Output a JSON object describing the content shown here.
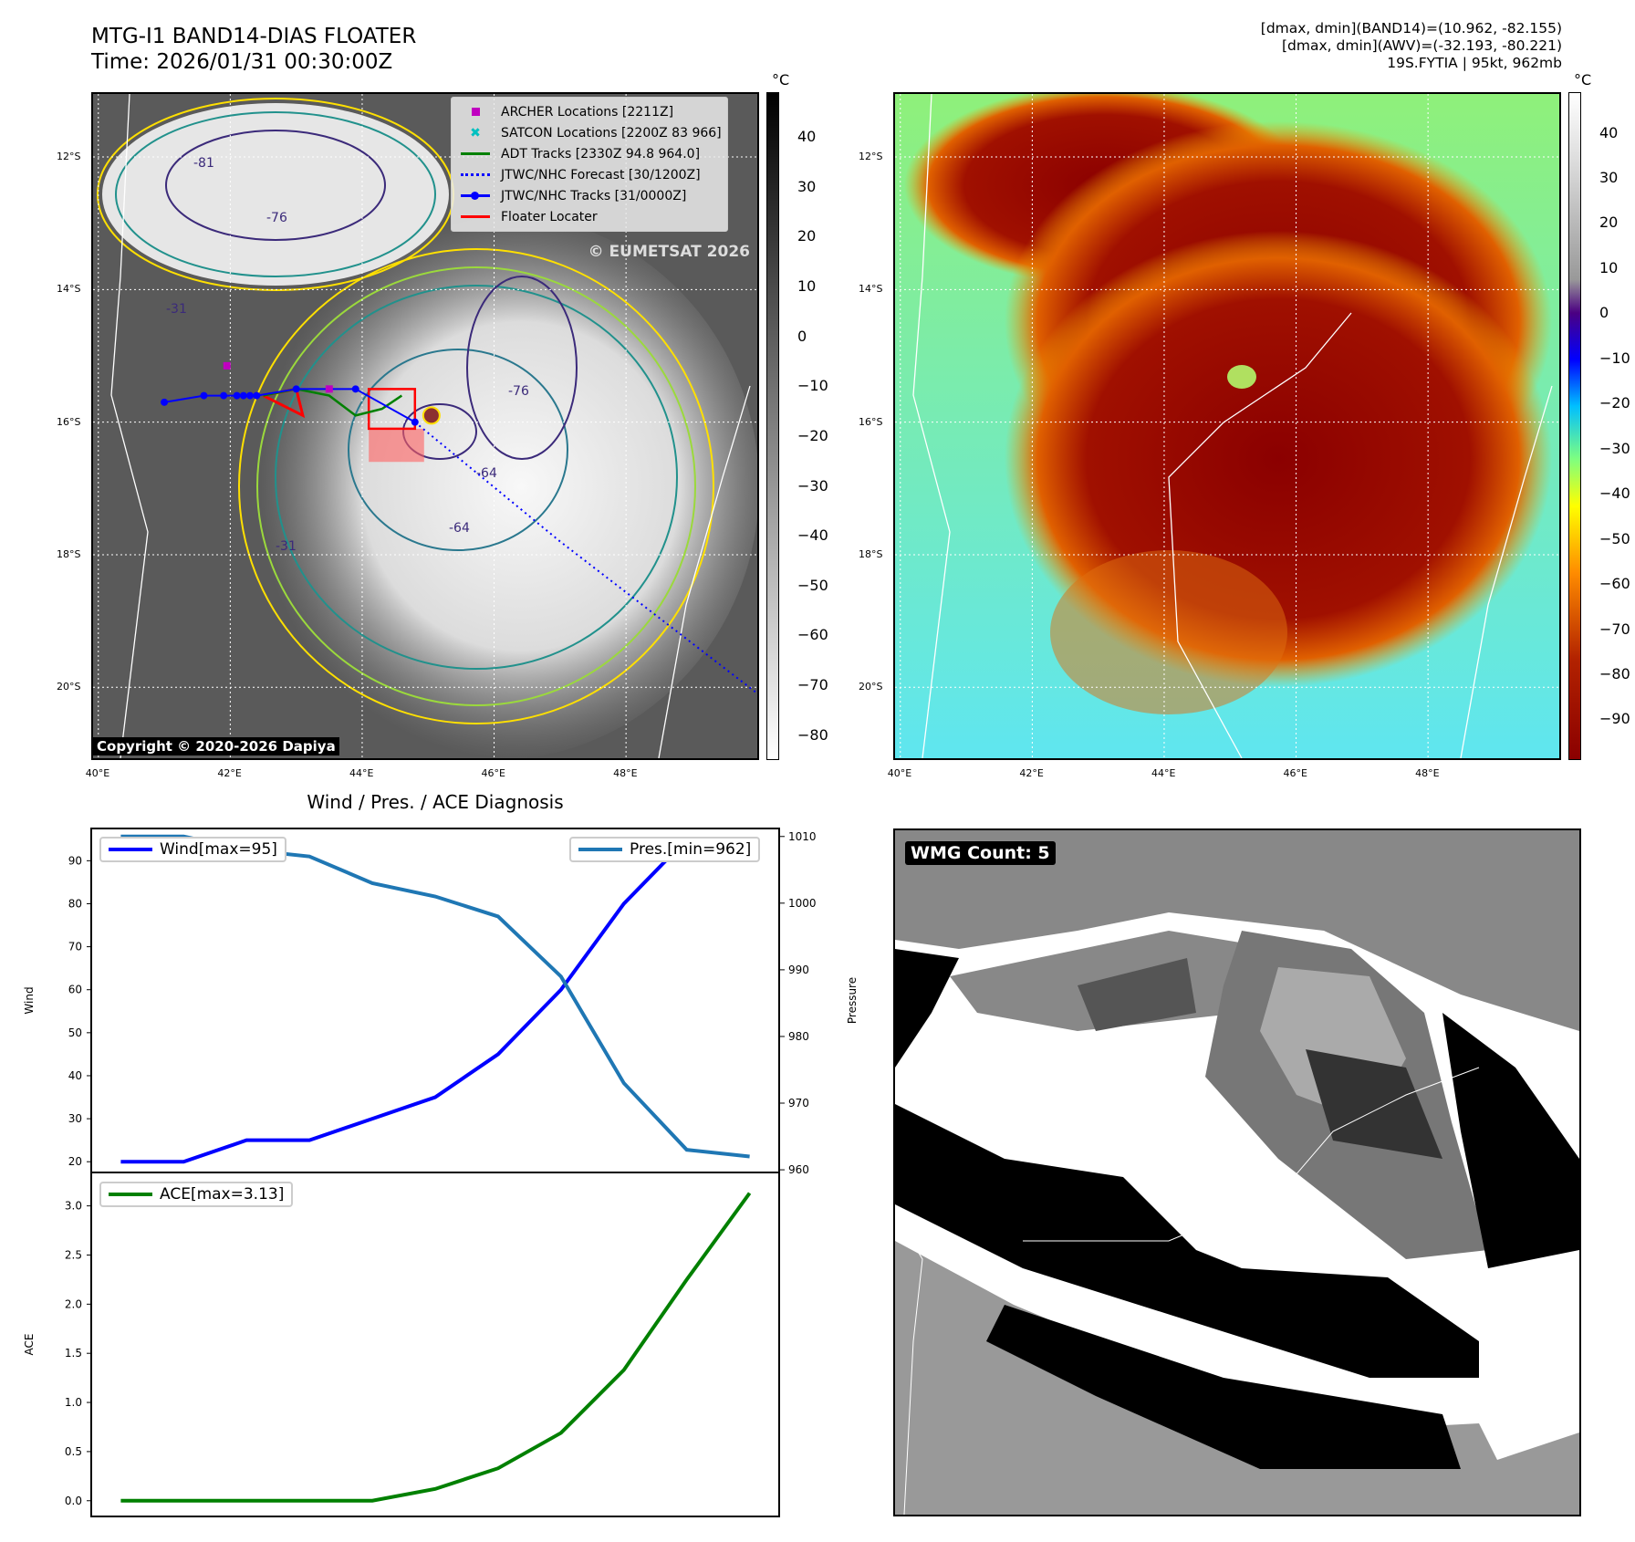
{
  "header": {
    "title_line1": "MTG-I1 BAND14-DIAS FLOATER",
    "title_line2": "Time: 2026/01/31 00:30:00Z",
    "info_line1": "[dmax, dmin](BAND14)=(10.962, -82.155)",
    "info_line2": "[dmax, dmin](AWV)=(-32.193, -80.221)",
    "info_line3": "19S.FYTIA | 95kt, 962mb"
  },
  "map": {
    "lon_ticks": [
      "40°E",
      "42°E",
      "44°E",
      "46°E",
      "48°E"
    ],
    "lat_ticks": [
      "12°S",
      "14°S",
      "16°S",
      "18°S",
      "20°S"
    ],
    "lon_values": [
      40,
      42,
      44,
      46,
      48
    ],
    "lat_values": [
      -12,
      -14,
      -16,
      -18,
      -20
    ],
    "lon_range": [
      39.92,
      49.99
    ],
    "lat_range": [
      -11.05,
      -21.07
    ],
    "watermark": "© EUMETSAT 2026",
    "copyright": "Copyright © 2020-2026 Dapiya",
    "legend": [
      "ARCHER Locations [2211Z]",
      "SATCON Locations [2200Z 83 966]",
      "ADT Tracks [2330Z 94.8 964.0]",
      "JTWC/NHC Forecast [30/1200Z]",
      "JTWC/NHC Tracks [31/0000Z]",
      "Floater Locater"
    ],
    "contour_labels": [
      "-81",
      "-76",
      "-64",
      "-31",
      "-76",
      "-64",
      "-31"
    ],
    "jtwc_track": [
      [
        41.0,
        -15.7
      ],
      [
        41.6,
        -15.6
      ],
      [
        41.9,
        -15.6
      ],
      [
        42.1,
        -15.6
      ],
      [
        42.2,
        -15.6
      ],
      [
        42.3,
        -15.6
      ],
      [
        42.4,
        -15.6
      ],
      [
        43.0,
        -15.5
      ],
      [
        43.9,
        -15.5
      ],
      [
        44.8,
        -16.0
      ]
    ],
    "forecast_track": [
      [
        44.8,
        -16.0
      ],
      [
        47.0,
        -17.8
      ],
      [
        50.0,
        -20.1
      ]
    ],
    "archer": [
      [
        41.95,
        -15.15
      ],
      [
        43.5,
        -15.5
      ]
    ],
    "adt_track": [
      [
        42.5,
        -15.6
      ],
      [
        43.0,
        -15.5
      ],
      [
        43.5,
        -15.6
      ],
      [
        43.9,
        -15.9
      ],
      [
        44.3,
        -15.8
      ],
      [
        44.6,
        -15.6
      ]
    ],
    "floater_box": [
      [
        44.1,
        -15.5
      ],
      [
        44.8,
        -15.5
      ],
      [
        44.8,
        -16.1
      ],
      [
        44.1,
        -16.1
      ]
    ],
    "colors": {
      "archer": "#c000c0",
      "satcon": "#00c0c0",
      "adt": "#008000",
      "jtwc": "#0000ff",
      "floater": "#ff0000"
    }
  },
  "colorbar_left": {
    "unit": "°C",
    "ticks": [
      "40",
      "30",
      "20",
      "10",
      "0",
      "−10",
      "−20",
      "−30",
      "−40",
      "−50",
      "−60",
      "−70",
      "−80"
    ],
    "range": [
      49,
      -85
    ]
  },
  "colorbar_right": {
    "unit": "°C",
    "ticks": [
      "40",
      "30",
      "20",
      "10",
      "0",
      "−10",
      "−20",
      "−30",
      "−40",
      "−50",
      "−60",
      "−70",
      "−80",
      "−90"
    ],
    "range": [
      49,
      -99
    ]
  },
  "wmg": {
    "label": "WMG Count: 5"
  },
  "chart_data": [
    {
      "type": "line",
      "title": "Wind / Pres. / ACE Diagnosis",
      "ylabel": "Wind",
      "y2label": "Pressure",
      "x": [
        0,
        1,
        2,
        3,
        4,
        5,
        6,
        7,
        8,
        9,
        10
      ],
      "xlim": [
        -0.47,
        10.47
      ],
      "ylim": [
        17.5,
        97.5
      ],
      "y2lim": [
        959.6,
        1011.2
      ],
      "yticks": [
        20,
        30,
        40,
        50,
        60,
        70,
        80,
        90
      ],
      "y2ticks": [
        960,
        970,
        980,
        990,
        1000,
        1010
      ],
      "series": [
        {
          "name": "Wind[max=95]",
          "axis": "left",
          "color": "#0000ff",
          "values": [
            20,
            20,
            25,
            25,
            30,
            35,
            45,
            60,
            80,
            95,
            95
          ]
        },
        {
          "name": "Pres.[min=962]",
          "axis": "right",
          "color": "#1f77b4",
          "values": [
            1010,
            1010,
            1008,
            1007,
            1003,
            1001,
            998,
            989,
            973,
            963,
            962
          ]
        }
      ]
    },
    {
      "type": "line",
      "ylabel": "ACE",
      "x": [
        0,
        1,
        2,
        3,
        4,
        5,
        6,
        7,
        8,
        9,
        10
      ],
      "xlim": [
        -0.47,
        10.47
      ],
      "ylim": [
        -0.16,
        3.34
      ],
      "yticks": [
        "0.0",
        "0.5",
        "1.0",
        "1.5",
        "2.0",
        "2.5",
        "3.0"
      ],
      "series": [
        {
          "name": "ACE[max=3.13]",
          "color": "#008000",
          "values": [
            0,
            0,
            0,
            0,
            0,
            0.12,
            0.33,
            0.69,
            1.33,
            2.25,
            3.13
          ]
        }
      ]
    }
  ]
}
